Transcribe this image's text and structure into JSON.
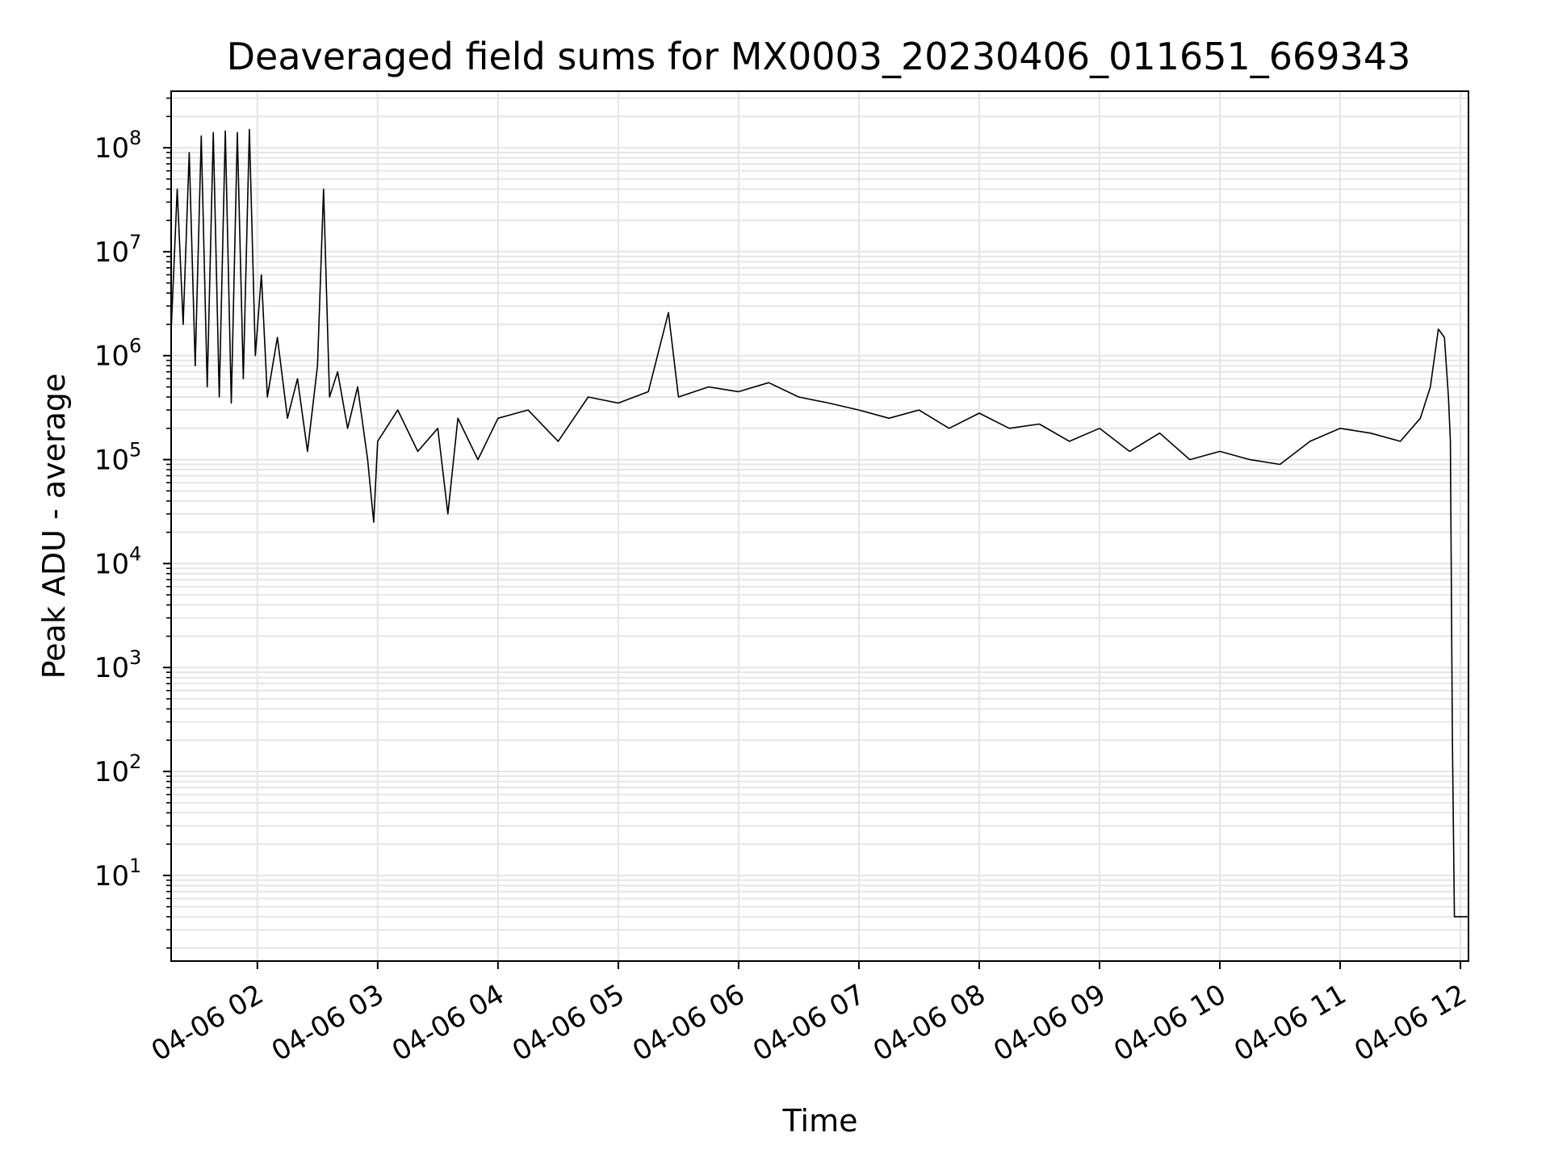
{
  "chart_data": {
    "type": "line",
    "title": "Deaveraged field sums for MX0003_20230406_011651_669343",
    "xlabel": "Time",
    "ylabel": "Peak ADU - average",
    "y_scale": "log",
    "ylim": [
      1.5,
      350000000
    ],
    "xlim": [
      "2023-04-06 01:17",
      "2023-04-06 12:04"
    ],
    "grid": true,
    "legend": "none",
    "line_color": "#000000",
    "grid_color": "#e5e5e5",
    "x_ticks": [
      {
        "value": "2023-04-06 02:00",
        "label": "04-06 02"
      },
      {
        "value": "2023-04-06 03:00",
        "label": "04-06 03"
      },
      {
        "value": "2023-04-06 04:00",
        "label": "04-06 04"
      },
      {
        "value": "2023-04-06 05:00",
        "label": "04-06 05"
      },
      {
        "value": "2023-04-06 06:00",
        "label": "04-06 06"
      },
      {
        "value": "2023-04-06 07:00",
        "label": "04-06 07"
      },
      {
        "value": "2023-04-06 08:00",
        "label": "04-06 08"
      },
      {
        "value": "2023-04-06 09:00",
        "label": "04-06 09"
      },
      {
        "value": "2023-04-06 10:00",
        "label": "04-06 10"
      },
      {
        "value": "2023-04-06 11:00",
        "label": "04-06 11"
      },
      {
        "value": "2023-04-06 12:00",
        "label": "04-06 12"
      }
    ],
    "y_ticks": [
      {
        "value": 10,
        "base": "10",
        "exp": "1"
      },
      {
        "value": 100,
        "base": "10",
        "exp": "2"
      },
      {
        "value": 1000,
        "base": "10",
        "exp": "3"
      },
      {
        "value": 10000,
        "base": "10",
        "exp": "4"
      },
      {
        "value": 100000,
        "base": "10",
        "exp": "5"
      },
      {
        "value": 1000000,
        "base": "10",
        "exp": "6"
      },
      {
        "value": 10000000,
        "base": "10",
        "exp": "7"
      },
      {
        "value": 100000000,
        "base": "10",
        "exp": "8"
      }
    ],
    "series": [
      {
        "x": [
          "2023-04-06 01:17",
          "2023-04-06 01:20",
          "2023-04-06 01:23",
          "2023-04-06 01:26",
          "2023-04-06 01:29",
          "2023-04-06 01:32",
          "2023-04-06 01:35",
          "2023-04-06 01:38",
          "2023-04-06 01:41",
          "2023-04-06 01:44",
          "2023-04-06 01:47",
          "2023-04-06 01:50",
          "2023-04-06 01:53",
          "2023-04-06 01:56",
          "2023-04-06 01:59",
          "2023-04-06 02:02",
          "2023-04-06 02:05",
          "2023-04-06 02:10",
          "2023-04-06 02:15",
          "2023-04-06 02:20",
          "2023-04-06 02:25",
          "2023-04-06 02:30",
          "2023-04-06 02:33",
          "2023-04-06 02:36",
          "2023-04-06 02:40",
          "2023-04-06 02:45",
          "2023-04-06 02:50",
          "2023-04-06 02:55",
          "2023-04-06 02:58",
          "2023-04-06 03:00",
          "2023-04-06 03:10",
          "2023-04-06 03:20",
          "2023-04-06 03:30",
          "2023-04-06 03:35",
          "2023-04-06 03:40",
          "2023-04-06 03:50",
          "2023-04-06 04:00",
          "2023-04-06 04:15",
          "2023-04-06 04:30",
          "2023-04-06 04:45",
          "2023-04-06 05:00",
          "2023-04-06 05:15",
          "2023-04-06 05:25",
          "2023-04-06 05:30",
          "2023-04-06 05:45",
          "2023-04-06 06:00",
          "2023-04-06 06:15",
          "2023-04-06 06:30",
          "2023-04-06 06:45",
          "2023-04-06 07:00",
          "2023-04-06 07:15",
          "2023-04-06 07:30",
          "2023-04-06 07:45",
          "2023-04-06 08:00",
          "2023-04-06 08:15",
          "2023-04-06 08:30",
          "2023-04-06 08:45",
          "2023-04-06 09:00",
          "2023-04-06 09:15",
          "2023-04-06 09:30",
          "2023-04-06 09:45",
          "2023-04-06 10:00",
          "2023-04-06 10:15",
          "2023-04-06 10:30",
          "2023-04-06 10:45",
          "2023-04-06 11:00",
          "2023-04-06 11:15",
          "2023-04-06 11:30",
          "2023-04-06 11:40",
          "2023-04-06 11:45",
          "2023-04-06 11:49",
          "2023-04-06 11:52",
          "2023-04-06 11:54",
          "2023-04-06 11:55",
          "2023-04-06 11:56",
          "2023-04-06 11:57",
          "2023-04-06 12:00",
          "2023-04-06 12:04"
        ],
        "y": [
          1700000,
          40000000,
          2000000,
          90000000,
          800000,
          130000000,
          500000,
          140000000,
          400000,
          145000000,
          350000,
          140000000,
          600000,
          150000000,
          1000000,
          6000000,
          400000,
          1500000,
          250000,
          600000,
          120000,
          800000,
          40000000,
          400000,
          700000,
          200000,
          500000,
          100000,
          25000,
          150000,
          300000,
          120000,
          200000,
          30000,
          250000,
          100000,
          250000,
          300000,
          150000,
          400000,
          350000,
          450000,
          2600000,
          400000,
          500000,
          450000,
          550000,
          400000,
          350000,
          300000,
          250000,
          300000,
          200000,
          280000,
          200000,
          220000,
          150000,
          200000,
          120000,
          180000,
          100000,
          120000,
          100000,
          90000,
          150000,
          200000,
          180000,
          150000,
          250000,
          500000,
          1800000,
          1500000,
          400000,
          150000,
          200,
          4,
          4,
          4
        ]
      }
    ]
  }
}
